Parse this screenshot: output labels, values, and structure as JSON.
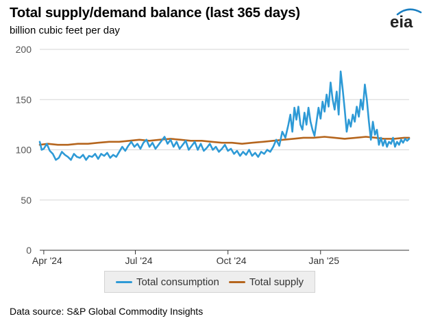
{
  "header": {
    "title": "Total supply/demand balance (last 365 days)",
    "subtitle": "billion cubic feet per day",
    "logo_text": "eia"
  },
  "footer": {
    "source": "Data source: S&P Global Commodity Insights"
  },
  "colors": {
    "consumption": "#2e9ad6",
    "supply": "#b5651d",
    "grid": "#d6d6d6",
    "logo_arc": "#1a7fc1"
  },
  "chart_data": {
    "type": "line",
    "ylim": [
      0,
      200
    ],
    "yticks": [
      0,
      50,
      100,
      150,
      200
    ],
    "xlim": [
      "2024-03-28",
      "2025-03-30"
    ],
    "xticks": [
      {
        "date": "2024-04-01",
        "label": "Apr '24"
      },
      {
        "date": "2024-07-01",
        "label": "Jul '24"
      },
      {
        "date": "2024-10-01",
        "label": "Oct '24"
      },
      {
        "date": "2025-01-01",
        "label": "Jan '25"
      }
    ],
    "grid": true,
    "legend_position": "bottom",
    "series": [
      {
        "name": "Total consumption",
        "color_key": "consumption",
        "points": [
          [
            "2024-03-28",
            108
          ],
          [
            "2024-03-30",
            100
          ],
          [
            "2024-04-01",
            101
          ],
          [
            "2024-04-04",
            106
          ],
          [
            "2024-04-07",
            99
          ],
          [
            "2024-04-10",
            96
          ],
          [
            "2024-04-13",
            90
          ],
          [
            "2024-04-16",
            92
          ],
          [
            "2024-04-19",
            98
          ],
          [
            "2024-04-22",
            95
          ],
          [
            "2024-04-25",
            93
          ],
          [
            "2024-04-28",
            90
          ],
          [
            "2024-05-01",
            96
          ],
          [
            "2024-05-04",
            93
          ],
          [
            "2024-05-07",
            92
          ],
          [
            "2024-05-10",
            95
          ],
          [
            "2024-05-13",
            90
          ],
          [
            "2024-05-16",
            94
          ],
          [
            "2024-05-19",
            93
          ],
          [
            "2024-05-22",
            96
          ],
          [
            "2024-05-25",
            91
          ],
          [
            "2024-05-28",
            96
          ],
          [
            "2024-05-31",
            94
          ],
          [
            "2024-06-03",
            97
          ],
          [
            "2024-06-06",
            92
          ],
          [
            "2024-06-09",
            95
          ],
          [
            "2024-06-12",
            93
          ],
          [
            "2024-06-15",
            98
          ],
          [
            "2024-06-18",
            103
          ],
          [
            "2024-06-21",
            99
          ],
          [
            "2024-06-24",
            104
          ],
          [
            "2024-06-27",
            108
          ],
          [
            "2024-06-30",
            103
          ],
          [
            "2024-07-03",
            106
          ],
          [
            "2024-07-06",
            101
          ],
          [
            "2024-07-09",
            107
          ],
          [
            "2024-07-12",
            110
          ],
          [
            "2024-07-15",
            103
          ],
          [
            "2024-07-18",
            107
          ],
          [
            "2024-07-21",
            101
          ],
          [
            "2024-07-24",
            105
          ],
          [
            "2024-07-27",
            109
          ],
          [
            "2024-07-30",
            113
          ],
          [
            "2024-08-02",
            106
          ],
          [
            "2024-08-05",
            110
          ],
          [
            "2024-08-08",
            103
          ],
          [
            "2024-08-11",
            108
          ],
          [
            "2024-08-14",
            101
          ],
          [
            "2024-08-17",
            105
          ],
          [
            "2024-08-20",
            109
          ],
          [
            "2024-08-23",
            100
          ],
          [
            "2024-08-26",
            104
          ],
          [
            "2024-08-29",
            108
          ],
          [
            "2024-09-01",
            100
          ],
          [
            "2024-09-04",
            106
          ],
          [
            "2024-09-07",
            99
          ],
          [
            "2024-09-10",
            102
          ],
          [
            "2024-09-13",
            106
          ],
          [
            "2024-09-16",
            100
          ],
          [
            "2024-09-19",
            103
          ],
          [
            "2024-09-22",
            98
          ],
          [
            "2024-09-25",
            101
          ],
          [
            "2024-09-28",
            105
          ],
          [
            "2024-10-01",
            99
          ],
          [
            "2024-10-04",
            101
          ],
          [
            "2024-10-07",
            96
          ],
          [
            "2024-10-10",
            99
          ],
          [
            "2024-10-13",
            94
          ],
          [
            "2024-10-16",
            98
          ],
          [
            "2024-10-19",
            95
          ],
          [
            "2024-10-22",
            100
          ],
          [
            "2024-10-25",
            94
          ],
          [
            "2024-10-28",
            97
          ],
          [
            "2024-10-31",
            93
          ],
          [
            "2024-11-03",
            98
          ],
          [
            "2024-11-06",
            96
          ],
          [
            "2024-11-09",
            100
          ],
          [
            "2024-11-12",
            98
          ],
          [
            "2024-11-15",
            103
          ],
          [
            "2024-11-18",
            110
          ],
          [
            "2024-11-21",
            104
          ],
          [
            "2024-11-24",
            118
          ],
          [
            "2024-11-27",
            112
          ],
          [
            "2024-11-30",
            125
          ],
          [
            "2024-12-02",
            135
          ],
          [
            "2024-12-04",
            118
          ],
          [
            "2024-12-06",
            142
          ],
          [
            "2024-12-08",
            130
          ],
          [
            "2024-12-10",
            143
          ],
          [
            "2024-12-12",
            125
          ],
          [
            "2024-12-14",
            120
          ],
          [
            "2024-12-16",
            137
          ],
          [
            "2024-12-18",
            125
          ],
          [
            "2024-12-20",
            142
          ],
          [
            "2024-12-22",
            128
          ],
          [
            "2024-12-24",
            120
          ],
          [
            "2024-12-26",
            114
          ],
          [
            "2024-12-28",
            128
          ],
          [
            "2024-12-30",
            142
          ],
          [
            "2025-01-01",
            131
          ],
          [
            "2025-01-03",
            148
          ],
          [
            "2025-01-05",
            138
          ],
          [
            "2025-01-07",
            155
          ],
          [
            "2025-01-09",
            143
          ],
          [
            "2025-01-11",
            167
          ],
          [
            "2025-01-13",
            150
          ],
          [
            "2025-01-15",
            140
          ],
          [
            "2025-01-17",
            158
          ],
          [
            "2025-01-19",
            135
          ],
          [
            "2025-01-21",
            178
          ],
          [
            "2025-01-23",
            160
          ],
          [
            "2025-01-25",
            140
          ],
          [
            "2025-01-27",
            118
          ],
          [
            "2025-01-29",
            130
          ],
          [
            "2025-01-31",
            123
          ],
          [
            "2025-02-02",
            135
          ],
          [
            "2025-02-04",
            128
          ],
          [
            "2025-02-06",
            143
          ],
          [
            "2025-02-08",
            133
          ],
          [
            "2025-02-10",
            150
          ],
          [
            "2025-02-12",
            140
          ],
          [
            "2025-02-14",
            165
          ],
          [
            "2025-02-16",
            150
          ],
          [
            "2025-02-18",
            128
          ],
          [
            "2025-02-20",
            110
          ],
          [
            "2025-02-22",
            128
          ],
          [
            "2025-02-24",
            115
          ],
          [
            "2025-02-26",
            120
          ],
          [
            "2025-02-28",
            105
          ],
          [
            "2025-03-02",
            112
          ],
          [
            "2025-03-04",
            104
          ],
          [
            "2025-03-06",
            110
          ],
          [
            "2025-03-08",
            103
          ],
          [
            "2025-03-10",
            108
          ],
          [
            "2025-03-12",
            106
          ],
          [
            "2025-03-14",
            112
          ],
          [
            "2025-03-16",
            103
          ],
          [
            "2025-03-18",
            108
          ],
          [
            "2025-03-20",
            105
          ],
          [
            "2025-03-22",
            110
          ],
          [
            "2025-03-24",
            107
          ],
          [
            "2025-03-26",
            111
          ],
          [
            "2025-03-28",
            109
          ],
          [
            "2025-03-30",
            111
          ]
        ]
      },
      {
        "name": "Total supply",
        "color_key": "supply",
        "points": [
          [
            "2024-03-28",
            105
          ],
          [
            "2024-04-05",
            106
          ],
          [
            "2024-04-15",
            105
          ],
          [
            "2024-04-25",
            105
          ],
          [
            "2024-05-05",
            106
          ],
          [
            "2024-05-15",
            106
          ],
          [
            "2024-05-25",
            107
          ],
          [
            "2024-06-05",
            108
          ],
          [
            "2024-06-15",
            108
          ],
          [
            "2024-06-25",
            109
          ],
          [
            "2024-07-05",
            110
          ],
          [
            "2024-07-15",
            109
          ],
          [
            "2024-07-25",
            110
          ],
          [
            "2024-08-05",
            111
          ],
          [
            "2024-08-15",
            110
          ],
          [
            "2024-08-25",
            109
          ],
          [
            "2024-09-05",
            109
          ],
          [
            "2024-09-15",
            108
          ],
          [
            "2024-09-25",
            107
          ],
          [
            "2024-10-05",
            107
          ],
          [
            "2024-10-15",
            106
          ],
          [
            "2024-10-25",
            107
          ],
          [
            "2024-11-05",
            108
          ],
          [
            "2024-11-15",
            109
          ],
          [
            "2024-11-25",
            110
          ],
          [
            "2024-12-05",
            111
          ],
          [
            "2024-12-15",
            112
          ],
          [
            "2024-12-25",
            112
          ],
          [
            "2025-01-05",
            113
          ],
          [
            "2025-01-15",
            112
          ],
          [
            "2025-01-25",
            111
          ],
          [
            "2025-02-05",
            112
          ],
          [
            "2025-02-15",
            113
          ],
          [
            "2025-02-25",
            112
          ],
          [
            "2025-03-05",
            111
          ],
          [
            "2025-03-15",
            111
          ],
          [
            "2025-03-25",
            112
          ],
          [
            "2025-03-30",
            112
          ]
        ]
      }
    ]
  }
}
